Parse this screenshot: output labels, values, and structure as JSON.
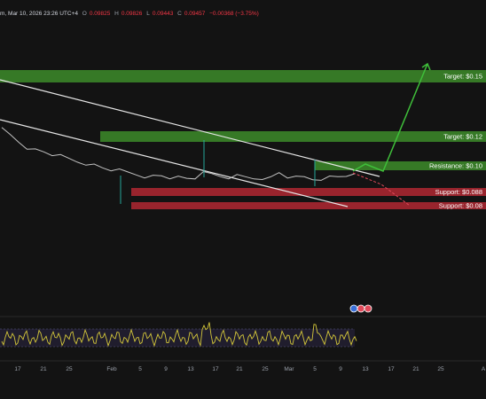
{
  "header": {
    "instrument": "m, Mar 10, 2026 23:26 UTC+4",
    "o_label": "O",
    "o_value": "0.09825",
    "h_label": "H",
    "h_value": "0.09826",
    "l_label": "L",
    "l_value": "0.09443",
    "c_label": "C",
    "c_value": "0.09457",
    "change": "−0.00368 (−3.75%)"
  },
  "colors": {
    "background": "#131313",
    "target_zone": "#3d8c2a",
    "support_zone": "#b22833",
    "channel_line": "#e6e6e6",
    "projection_up": "#3fbf3a",
    "projection_down": "#e04a5a",
    "price_line": "#c2c2c2",
    "rsi_line": "#d4c73a",
    "rsi_band": "#2a2540"
  },
  "chart_data": {
    "type": "line",
    "x_ticks": [
      "17",
      "21",
      "25",
      "Feb",
      "5",
      "9",
      "13",
      "17",
      "21",
      "25",
      "Mar",
      "5",
      "9",
      "13",
      "17",
      "21",
      "25",
      "A"
    ],
    "levels": [
      {
        "name": "target",
        "label": "Target: $0.15",
        "value": 0.15
      },
      {
        "name": "target",
        "label": "Target: $0.12",
        "value": 0.12
      },
      {
        "name": "resistance",
        "label": "Resistance: $0.10",
        "value": 0.1
      },
      {
        "name": "support",
        "label": "Support: $0.088",
        "value": 0.088
      },
      {
        "name": "support",
        "label": "Support: $0.08",
        "value": 0.08
      }
    ],
    "series": [
      {
        "values": [
          0.155,
          0.148,
          0.14,
          0.133,
          0.129,
          0.127,
          0.124,
          0.121,
          0.118,
          0.115,
          0.113,
          0.11,
          0.107,
          0.105,
          0.103,
          0.101,
          0.099,
          0.097,
          0.096,
          0.097,
          0.095,
          0.094,
          0.093,
          0.094,
          0.105,
          0.098,
          0.096,
          0.095,
          0.096,
          0.095,
          0.094,
          0.095,
          0.094,
          0.101,
          0.096,
          0.094,
          0.095,
          0.093,
          0.094,
          0.095,
          0.096,
          0.098,
          0.097
        ]
      }
    ],
    "rsi_badges": [
      "●",
      "●",
      "●"
    ],
    "grid": false
  }
}
